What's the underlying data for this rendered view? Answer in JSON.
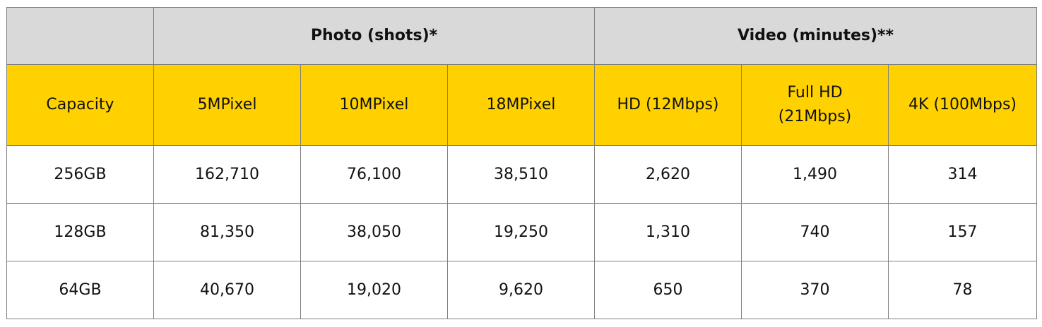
{
  "colors": {
    "group_header_bg": "#d9d9d9",
    "column_header_bg": "#ffd100",
    "border": "#7f7f7f",
    "body_bg": "#ffffff"
  },
  "table": {
    "corner": "",
    "groups": [
      {
        "label": "Photo (shots)*",
        "span": 3
      },
      {
        "label": "Video (minutes)**",
        "span": 3
      }
    ],
    "columns": [
      "Capacity",
      "5MPixel",
      "10MPixel",
      "18MPixel",
      "HD (12Mbps)",
      "Full HD (21Mbps)",
      "4K (100Mbps)"
    ],
    "rows": [
      [
        "256GB",
        "162,710",
        "76,100",
        "38,510",
        "2,620",
        "1,490",
        "314"
      ],
      [
        "128GB",
        "81,350",
        "38,050",
        "19,250",
        "1,310",
        "740",
        "157"
      ],
      [
        "64GB",
        "40,670",
        "19,020",
        "9,620",
        "650",
        "370",
        "78"
      ]
    ]
  }
}
